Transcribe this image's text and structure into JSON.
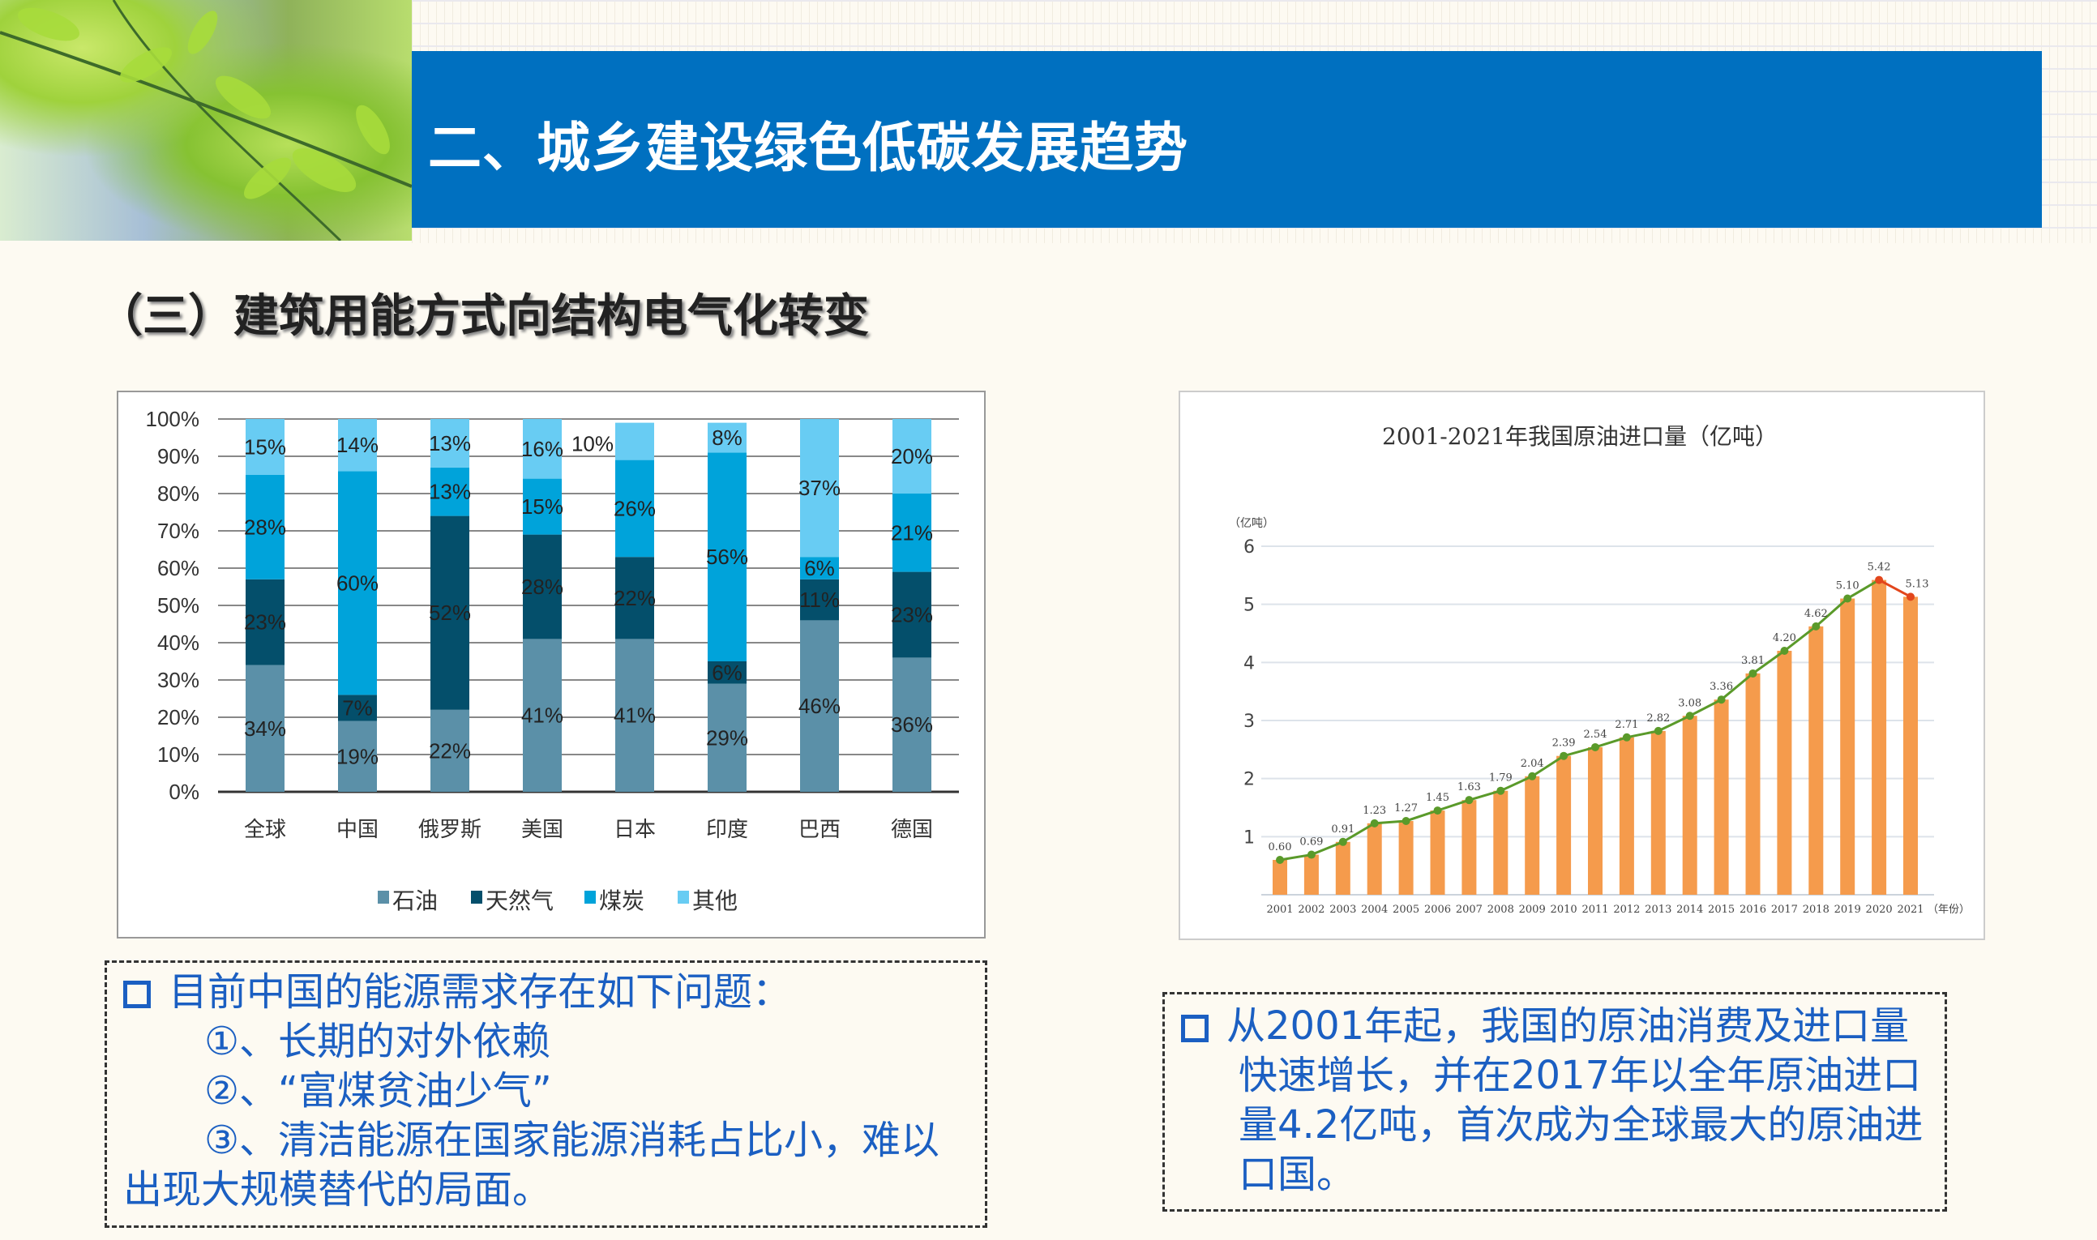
{
  "header": {
    "title": "二、城乡建设绿色低碳发展趋势"
  },
  "subtitle": "（三）建筑用能方式向结构电气化转变",
  "chart_data": [
    {
      "type": "bar",
      "stacked": true,
      "title": "",
      "categories": [
        "全球",
        "中国",
        "俄罗斯",
        "美国",
        "日本",
        "印度",
        "巴西",
        "德国"
      ],
      "series": [
        {
          "name": "石油",
          "color": "#5b90a8",
          "values": [
            34,
            19,
            22,
            41,
            41,
            29,
            46,
            36
          ]
        },
        {
          "name": "天然气",
          "color": "#044f6b",
          "values": [
            23,
            7,
            52,
            28,
            22,
            6,
            11,
            23
          ]
        },
        {
          "name": "煤炭",
          "color": "#00a3da",
          "values": [
            28,
            60,
            13,
            15,
            26,
            56,
            6,
            21
          ]
        },
        {
          "name": "其他",
          "color": "#68ccf3",
          "values": [
            15,
            14,
            13,
            16,
            10,
            8,
            37,
            20
          ]
        }
      ],
      "yticks": [
        "0%",
        "10%",
        "20%",
        "30%",
        "40%",
        "50%",
        "60%",
        "70%",
        "80%",
        "90%",
        "100%"
      ],
      "ylim": [
        0,
        100
      ],
      "legend": "bottom"
    },
    {
      "type": "bar",
      "title": "2001-2021年我国原油进口量（亿吨）",
      "ylabel": "（亿吨）",
      "xlabel": "（年份）",
      "x": [
        "2001",
        "2002",
        "2003",
        "2004",
        "2005",
        "2006",
        "2007",
        "2008",
        "2009",
        "2010",
        "2011",
        "2012",
        "2013",
        "2014",
        "2015",
        "2016",
        "2017",
        "2018",
        "2019",
        "2020",
        "2021"
      ],
      "values": [
        0.6,
        0.69,
        0.91,
        1.23,
        1.27,
        1.45,
        1.63,
        1.79,
        2.04,
        2.39,
        2.54,
        2.71,
        2.82,
        3.08,
        3.36,
        3.81,
        4.2,
        4.62,
        5.1,
        5.42,
        5.13
      ],
      "labels": [
        "0.60",
        "0.69",
        "0.91",
        "1.23",
        "1.27",
        "1.45",
        "1.63",
        "1.79",
        "2.04",
        "2.39",
        "2.54",
        "2.71",
        "2.82",
        "3.08",
        "3.36",
        "3.81",
        "4.20",
        "4.62",
        "5.10",
        "5.42",
        "5.13"
      ],
      "yticks": [
        "1",
        "2",
        "3",
        "4",
        "5",
        "6"
      ],
      "ylim": [
        0,
        6
      ],
      "bar_color": "#f59b4c",
      "line_color": "#5a9a2a",
      "highlight_color": "#e2461c",
      "highlight_years": [
        "2020",
        "2021"
      ]
    }
  ],
  "notes": {
    "left": {
      "lines": [
        "目前中国的能源需求存在如下问题：",
        "①、长期的对外依赖",
        "②、“富煤贫油少气”",
        "③、清洁能源在国家能源消耗占比小，难以",
        "出现大规模替代的局面。"
      ]
    },
    "right": {
      "lines": [
        "从2001年起，我国的原油消费及进口量",
        "快速增长，并在2017年以全年原油进口",
        "量4.2亿吨，首次成为全球最大的原油进",
        "口国。"
      ]
    }
  }
}
